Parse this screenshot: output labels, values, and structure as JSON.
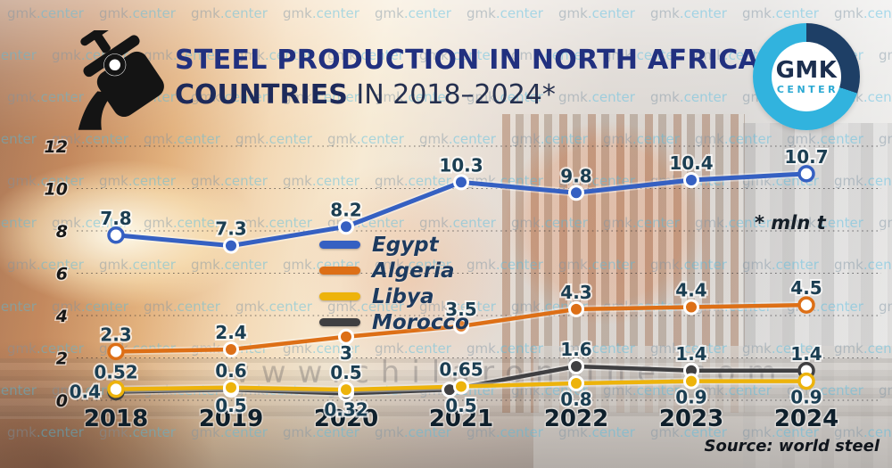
{
  "header": {
    "title_line1": "STEEL PRODUCTION IN NORTH AFRICAN",
    "title_line2_bold": "COUNTRIES",
    "title_line2_rest": " IN 2018–2024*"
  },
  "logo": {
    "line1": "GMK",
    "line2": "CENTER"
  },
  "watermark": {
    "tile": "gmk.center",
    "big": "www.chilaronline.com"
  },
  "annotation": "* mln t",
  "source": "Source: world steel",
  "chart_data": {
    "type": "line",
    "title": "Steel production in North African countries in 2018–2024",
    "unit": "mln t",
    "categories": [
      "2018",
      "2019",
      "2020",
      "2021",
      "2022",
      "2023",
      "2024"
    ],
    "xlabel": "",
    "ylabel": "",
    "ylim": [
      0,
      12
    ],
    "yticks": [
      0,
      2,
      4,
      6,
      8,
      10,
      12
    ],
    "grid": true,
    "legend_position": "middle-left",
    "series": [
      {
        "name": "Egypt",
        "color": "#3560c2",
        "values": [
          7.8,
          7.3,
          8.2,
          10.3,
          9.8,
          10.4,
          10.7
        ],
        "label_pos": [
          "above",
          "above",
          "above",
          "above",
          "above",
          "above",
          "above"
        ],
        "marker_dx": [
          0,
          0,
          0,
          0,
          0,
          0,
          0
        ]
      },
      {
        "name": "Algeria",
        "color": "#dd6f16",
        "values": [
          2.3,
          2.4,
          3,
          3.5,
          4.3,
          4.4,
          4.5
        ],
        "label_pos": [
          "above",
          "above",
          "below",
          "above",
          "above",
          "above",
          "above"
        ],
        "marker_dx": [
          0,
          0,
          0,
          0,
          0,
          0,
          0
        ]
      },
      {
        "name": "Libya",
        "color": "#edb30b",
        "values": [
          0.52,
          0.6,
          0.5,
          0.65,
          0.8,
          0.9,
          0.9
        ],
        "label_pos": [
          "above",
          "above",
          "above",
          "above",
          "below",
          "below",
          "below"
        ],
        "marker_dx": [
          0,
          0,
          0,
          0,
          0,
          0,
          0
        ]
      },
      {
        "name": "Morocco",
        "color": "#3f3f41",
        "values": [
          0.4,
          0.5,
          0.32,
          0.5,
          1.6,
          1.4,
          1.4
        ],
        "label_pos": [
          "left",
          "below",
          "below",
          "below",
          "above",
          "above",
          "above"
        ],
        "marker_dx": [
          0,
          0,
          0,
          -13,
          0,
          0,
          0
        ]
      }
    ]
  }
}
